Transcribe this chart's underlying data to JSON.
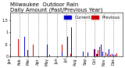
{
  "title": "Milwaukee  Outdoor Rain",
  "subtitle": "Daily Amount (Past/Previous Year)",
  "background_color": "#ffffff",
  "plot_bg_color": "#ffffff",
  "grid_color": "#888888",
  "bar_color_current": "#0000cc",
  "bar_color_previous": "#cc0000",
  "legend_label_current": "Current",
  "legend_label_previous": "Previous",
  "ylim": [
    0,
    1.8
  ],
  "yticks": [
    0,
    0.5,
    1.0,
    1.5
  ],
  "ytick_labels": [
    "0",
    ".5",
    "1",
    "1.5"
  ],
  "month_positions": [
    0,
    31,
    59,
    90,
    120,
    151,
    181,
    212,
    243,
    273,
    304,
    334
  ],
  "month_labels": [
    "Jan",
    "Feb",
    "Mar",
    "Apr",
    "May",
    "Jun",
    "Jul",
    "Aug",
    "Sep",
    "Oct",
    "Nov",
    "Dec"
  ],
  "title_fontsize": 5,
  "tick_fontsize": 3.5,
  "legend_fontsize": 4
}
